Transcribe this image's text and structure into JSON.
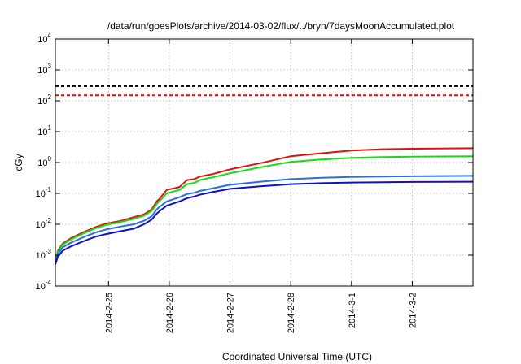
{
  "chart_data": {
    "type": "line",
    "title": "/data/run/goesPlots/archive/2014-03-02/flux/../bryn/7daysMoonAccumulated.plot",
    "xlabel": "Coordinated Universal Time (UTC)",
    "ylabel": "cGy",
    "y_scale": "log",
    "ylim": [
      0.0001,
      10000
    ],
    "y_ticks": [
      {
        "base": "10",
        "exp": "-4",
        "value": 0.0001
      },
      {
        "base": "10",
        "exp": "-3",
        "value": 0.001
      },
      {
        "base": "10",
        "exp": "-2",
        "value": 0.01
      },
      {
        "base": "10",
        "exp": "-1",
        "value": 0.1
      },
      {
        "base": "10",
        "exp": "0",
        "value": 1
      },
      {
        "base": "10",
        "exp": "1",
        "value": 10
      },
      {
        "base": "10",
        "exp": "2",
        "value": 100
      },
      {
        "base": "10",
        "exp": "3",
        "value": 1000
      },
      {
        "base": "10",
        "exp": "4",
        "value": 10000
      }
    ],
    "xlim": [
      "2014-02-24T03:00",
      "2014-03-02T23:59"
    ],
    "x_ticks": [
      "2014-2-25",
      "2014-2-26",
      "2014-2-27",
      "2014-2-28",
      "2014-3-1",
      "2014-3-2"
    ],
    "grid": true,
    "reference_lines": [
      {
        "value": 300,
        "color": "#000000",
        "style": "dashed"
      },
      {
        "value": 150,
        "color": "#ff0000",
        "style": "dashed"
      }
    ],
    "series": [
      {
        "color": "#e01010",
        "points": [
          [
            "2014-02-24T03:00",
            0.0006
          ],
          [
            "2014-02-24T04:00",
            0.0014
          ],
          [
            "2014-02-24T06:00",
            0.0024
          ],
          [
            "2014-02-24T09:00",
            0.0035
          ],
          [
            "2014-02-24T14:00",
            0.0055
          ],
          [
            "2014-02-24T19:00",
            0.0082
          ],
          [
            "2014-02-24T23:00",
            0.0105
          ],
          [
            "2014-02-25T05:00",
            0.013
          ],
          [
            "2014-02-25T10:00",
            0.017
          ],
          [
            "2014-02-25T14:00",
            0.021
          ],
          [
            "2014-02-25T17:00",
            0.03
          ],
          [
            "2014-02-25T19:00",
            0.055
          ],
          [
            "2014-02-25T20:00",
            0.065
          ],
          [
            "2014-02-25T23:00",
            0.13
          ],
          [
            "2014-02-26T04:00",
            0.16
          ],
          [
            "2014-02-26T07:00",
            0.27
          ],
          [
            "2014-02-26T10:00",
            0.29
          ],
          [
            "2014-02-26T12:00",
            0.35
          ],
          [
            "2014-02-26T17:00",
            0.42
          ],
          [
            "2014-02-27T00:00",
            0.6
          ],
          [
            "2014-02-27T12:00",
            0.95
          ],
          [
            "2014-02-28T00:00",
            1.6
          ],
          [
            "2014-02-28T12:00",
            2.0
          ],
          [
            "2014-03-01T00:00",
            2.45
          ],
          [
            "2014-03-01T12:00",
            2.7
          ],
          [
            "2014-03-02T00:00",
            2.8
          ],
          [
            "2014-03-02T23:59",
            2.9
          ]
        ]
      },
      {
        "color": "#10e010",
        "points": [
          [
            "2014-02-24T03:00",
            0.0006
          ],
          [
            "2014-02-24T04:00",
            0.0013
          ],
          [
            "2014-02-24T06:00",
            0.0022
          ],
          [
            "2014-02-24T09:00",
            0.0032
          ],
          [
            "2014-02-24T14:00",
            0.005
          ],
          [
            "2014-02-24T19:00",
            0.0075
          ],
          [
            "2014-02-24T23:00",
            0.0095
          ],
          [
            "2014-02-25T05:00",
            0.012
          ],
          [
            "2014-02-25T10:00",
            0.015
          ],
          [
            "2014-02-25T14:00",
            0.019
          ],
          [
            "2014-02-25T17:00",
            0.027
          ],
          [
            "2014-02-25T19:00",
            0.045
          ],
          [
            "2014-02-25T20:00",
            0.055
          ],
          [
            "2014-02-25T23:00",
            0.1
          ],
          [
            "2014-02-26T04:00",
            0.13
          ],
          [
            "2014-02-26T07:00",
            0.2
          ],
          [
            "2014-02-26T10:00",
            0.22
          ],
          [
            "2014-02-26T12:00",
            0.27
          ],
          [
            "2014-02-26T17:00",
            0.33
          ],
          [
            "2014-02-27T00:00",
            0.45
          ],
          [
            "2014-02-27T12:00",
            0.7
          ],
          [
            "2014-02-28T00:00",
            1.05
          ],
          [
            "2014-02-28T12:00",
            1.25
          ],
          [
            "2014-03-01T00:00",
            1.42
          ],
          [
            "2014-03-01T12:00",
            1.5
          ],
          [
            "2014-03-02T00:00",
            1.55
          ],
          [
            "2014-03-02T23:59",
            1.6
          ]
        ]
      },
      {
        "color": "#2a6fe0",
        "points": [
          [
            "2014-02-24T03:00",
            0.0006
          ],
          [
            "2014-02-24T04:00",
            0.0011
          ],
          [
            "2014-02-24T06:00",
            0.0018
          ],
          [
            "2014-02-24T09:00",
            0.0025
          ],
          [
            "2014-02-24T14:00",
            0.0038
          ],
          [
            "2014-02-24T19:00",
            0.0055
          ],
          [
            "2014-02-24T23:00",
            0.0068
          ],
          [
            "2014-02-25T05:00",
            0.0085
          ],
          [
            "2014-02-25T10:00",
            0.01
          ],
          [
            "2014-02-25T14:00",
            0.013
          ],
          [
            "2014-02-25T17:00",
            0.018
          ],
          [
            "2014-02-25T19:00",
            0.03
          ],
          [
            "2014-02-25T20:00",
            0.036
          ],
          [
            "2014-02-25T23:00",
            0.055
          ],
          [
            "2014-02-26T04:00",
            0.075
          ],
          [
            "2014-02-26T07:00",
            0.095
          ],
          [
            "2014-02-26T10:00",
            0.105
          ],
          [
            "2014-02-26T12:00",
            0.12
          ],
          [
            "2014-02-26T17:00",
            0.145
          ],
          [
            "2014-02-27T00:00",
            0.19
          ],
          [
            "2014-02-27T12:00",
            0.24
          ],
          [
            "2014-02-28T00:00",
            0.29
          ],
          [
            "2014-02-28T12:00",
            0.32
          ],
          [
            "2014-03-01T00:00",
            0.34
          ],
          [
            "2014-03-01T12:00",
            0.35
          ],
          [
            "2014-03-02T00:00",
            0.36
          ],
          [
            "2014-03-02T23:59",
            0.37
          ]
        ]
      },
      {
        "color": "#1010c8",
        "points": [
          [
            "2014-02-24T03:00",
            0.0005
          ],
          [
            "2014-02-24T04:00",
            0.0009
          ],
          [
            "2014-02-24T06:00",
            0.0014
          ],
          [
            "2014-02-24T09:00",
            0.0019
          ],
          [
            "2014-02-24T14:00",
            0.0028
          ],
          [
            "2014-02-24T19:00",
            0.004
          ],
          [
            "2014-02-24T23:00",
            0.0048
          ],
          [
            "2014-02-25T05:00",
            0.006
          ],
          [
            "2014-02-25T10:00",
            0.0072
          ],
          [
            "2014-02-25T14:00",
            0.01
          ],
          [
            "2014-02-25T17:00",
            0.014
          ],
          [
            "2014-02-25T19:00",
            0.022
          ],
          [
            "2014-02-25T20:00",
            0.026
          ],
          [
            "2014-02-25T23:00",
            0.04
          ],
          [
            "2014-02-26T04:00",
            0.055
          ],
          [
            "2014-02-26T07:00",
            0.07
          ],
          [
            "2014-02-26T10:00",
            0.08
          ],
          [
            "2014-02-26T12:00",
            0.09
          ],
          [
            "2014-02-26T17:00",
            0.11
          ],
          [
            "2014-02-27T00:00",
            0.14
          ],
          [
            "2014-02-27T12:00",
            0.17
          ],
          [
            "2014-02-28T00:00",
            0.2
          ],
          [
            "2014-02-28T12:00",
            0.215
          ],
          [
            "2014-03-01T00:00",
            0.225
          ],
          [
            "2014-03-01T12:00",
            0.23
          ],
          [
            "2014-03-02T00:00",
            0.235
          ],
          [
            "2014-03-02T23:59",
            0.24
          ]
        ]
      }
    ]
  }
}
